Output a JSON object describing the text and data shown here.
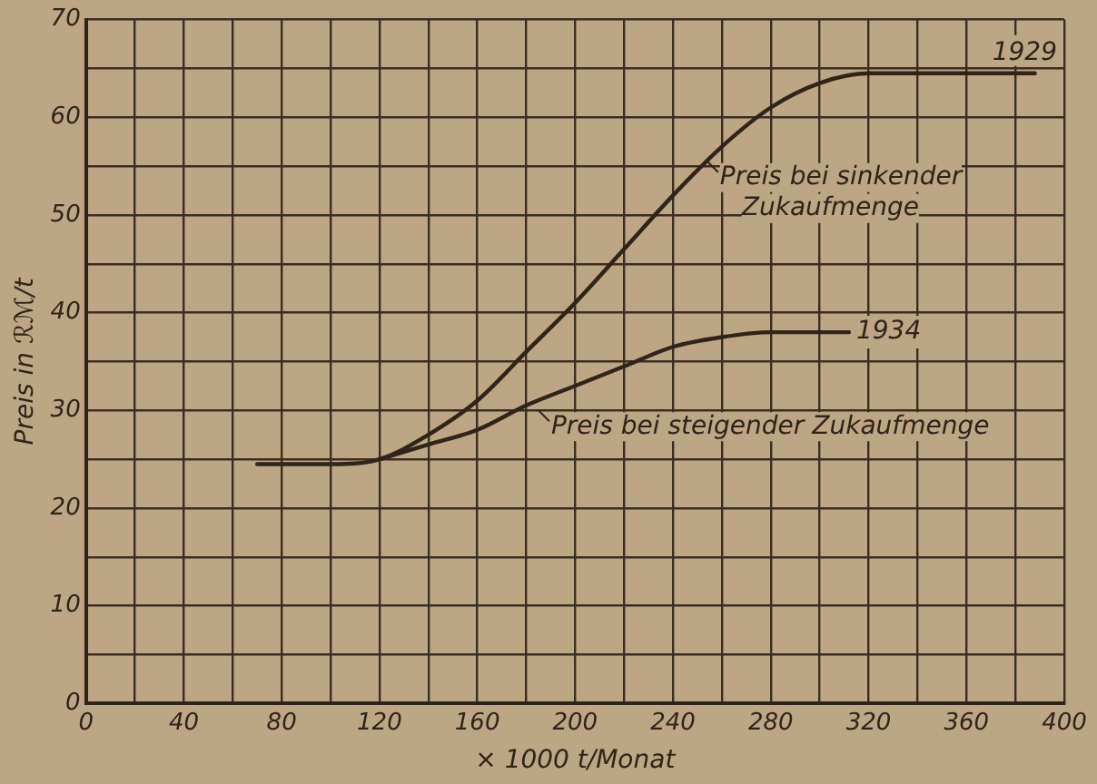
{
  "chart_data": {
    "type": "line",
    "xlabel": "× 1000 t/Monat",
    "ylabel": "Preis in ℛℳ/t",
    "xlim": [
      0,
      400
    ],
    "xticks": [
      0,
      {
        "value": 20,
        "label": null
      },
      40,
      {
        "value": 60,
        "label": null
      },
      80,
      {
        "value": 100,
        "label": null
      },
      120,
      {
        "value": 140,
        "label": null
      },
      160,
      {
        "value": 180,
        "label": null
      },
      200,
      {
        "value": 220,
        "label": null
      },
      240,
      {
        "value": 260,
        "label": null
      },
      280,
      {
        "value": 300,
        "label": null
      },
      320,
      {
        "value": 340,
        "label": null
      },
      360,
      {
        "value": 380,
        "label": null
      },
      400
    ],
    "ylim": [
      0,
      70
    ],
    "yticks": [
      0,
      {
        "value": 5,
        "label": null
      },
      10,
      {
        "value": 15,
        "label": null
      },
      20,
      {
        "value": 25,
        "label": null
      },
      30,
      {
        "value": 35,
        "label": null
      },
      40,
      {
        "value": 45,
        "label": null
      },
      50,
      {
        "value": 55,
        "label": null
      },
      60,
      {
        "value": 65,
        "label": null
      },
      70
    ],
    "grid": true,
    "legend": false,
    "marker": "none",
    "line_style": "solid",
    "series": [
      {
        "name": "1929",
        "color": "#2e2418",
        "x": [
          70,
          100,
          120,
          140,
          160,
          180,
          200,
          220,
          240,
          260,
          280,
          300,
          320,
          360,
          388
        ],
        "values": [
          24.5,
          24.5,
          25,
          27.5,
          31,
          36,
          41,
          46.5,
          52,
          57,
          61,
          63.5,
          64.5,
          64.5,
          64.5
        ]
      },
      {
        "name": "1934",
        "color": "#2e2418",
        "x": [
          120,
          140,
          160,
          180,
          200,
          220,
          240,
          260,
          280,
          312
        ],
        "values": [
          25,
          26.5,
          28,
          30.5,
          32.5,
          34.5,
          36.5,
          37.5,
          38,
          38
        ]
      }
    ],
    "annotations": [
      {
        "text": "Preis bei sinkender\nZukaufmenge",
        "x": 254,
        "y": 55.5
      },
      {
        "text": "Preis bei steigender Zukaufmenge",
        "x": 185,
        "y": 30
      }
    ]
  }
}
